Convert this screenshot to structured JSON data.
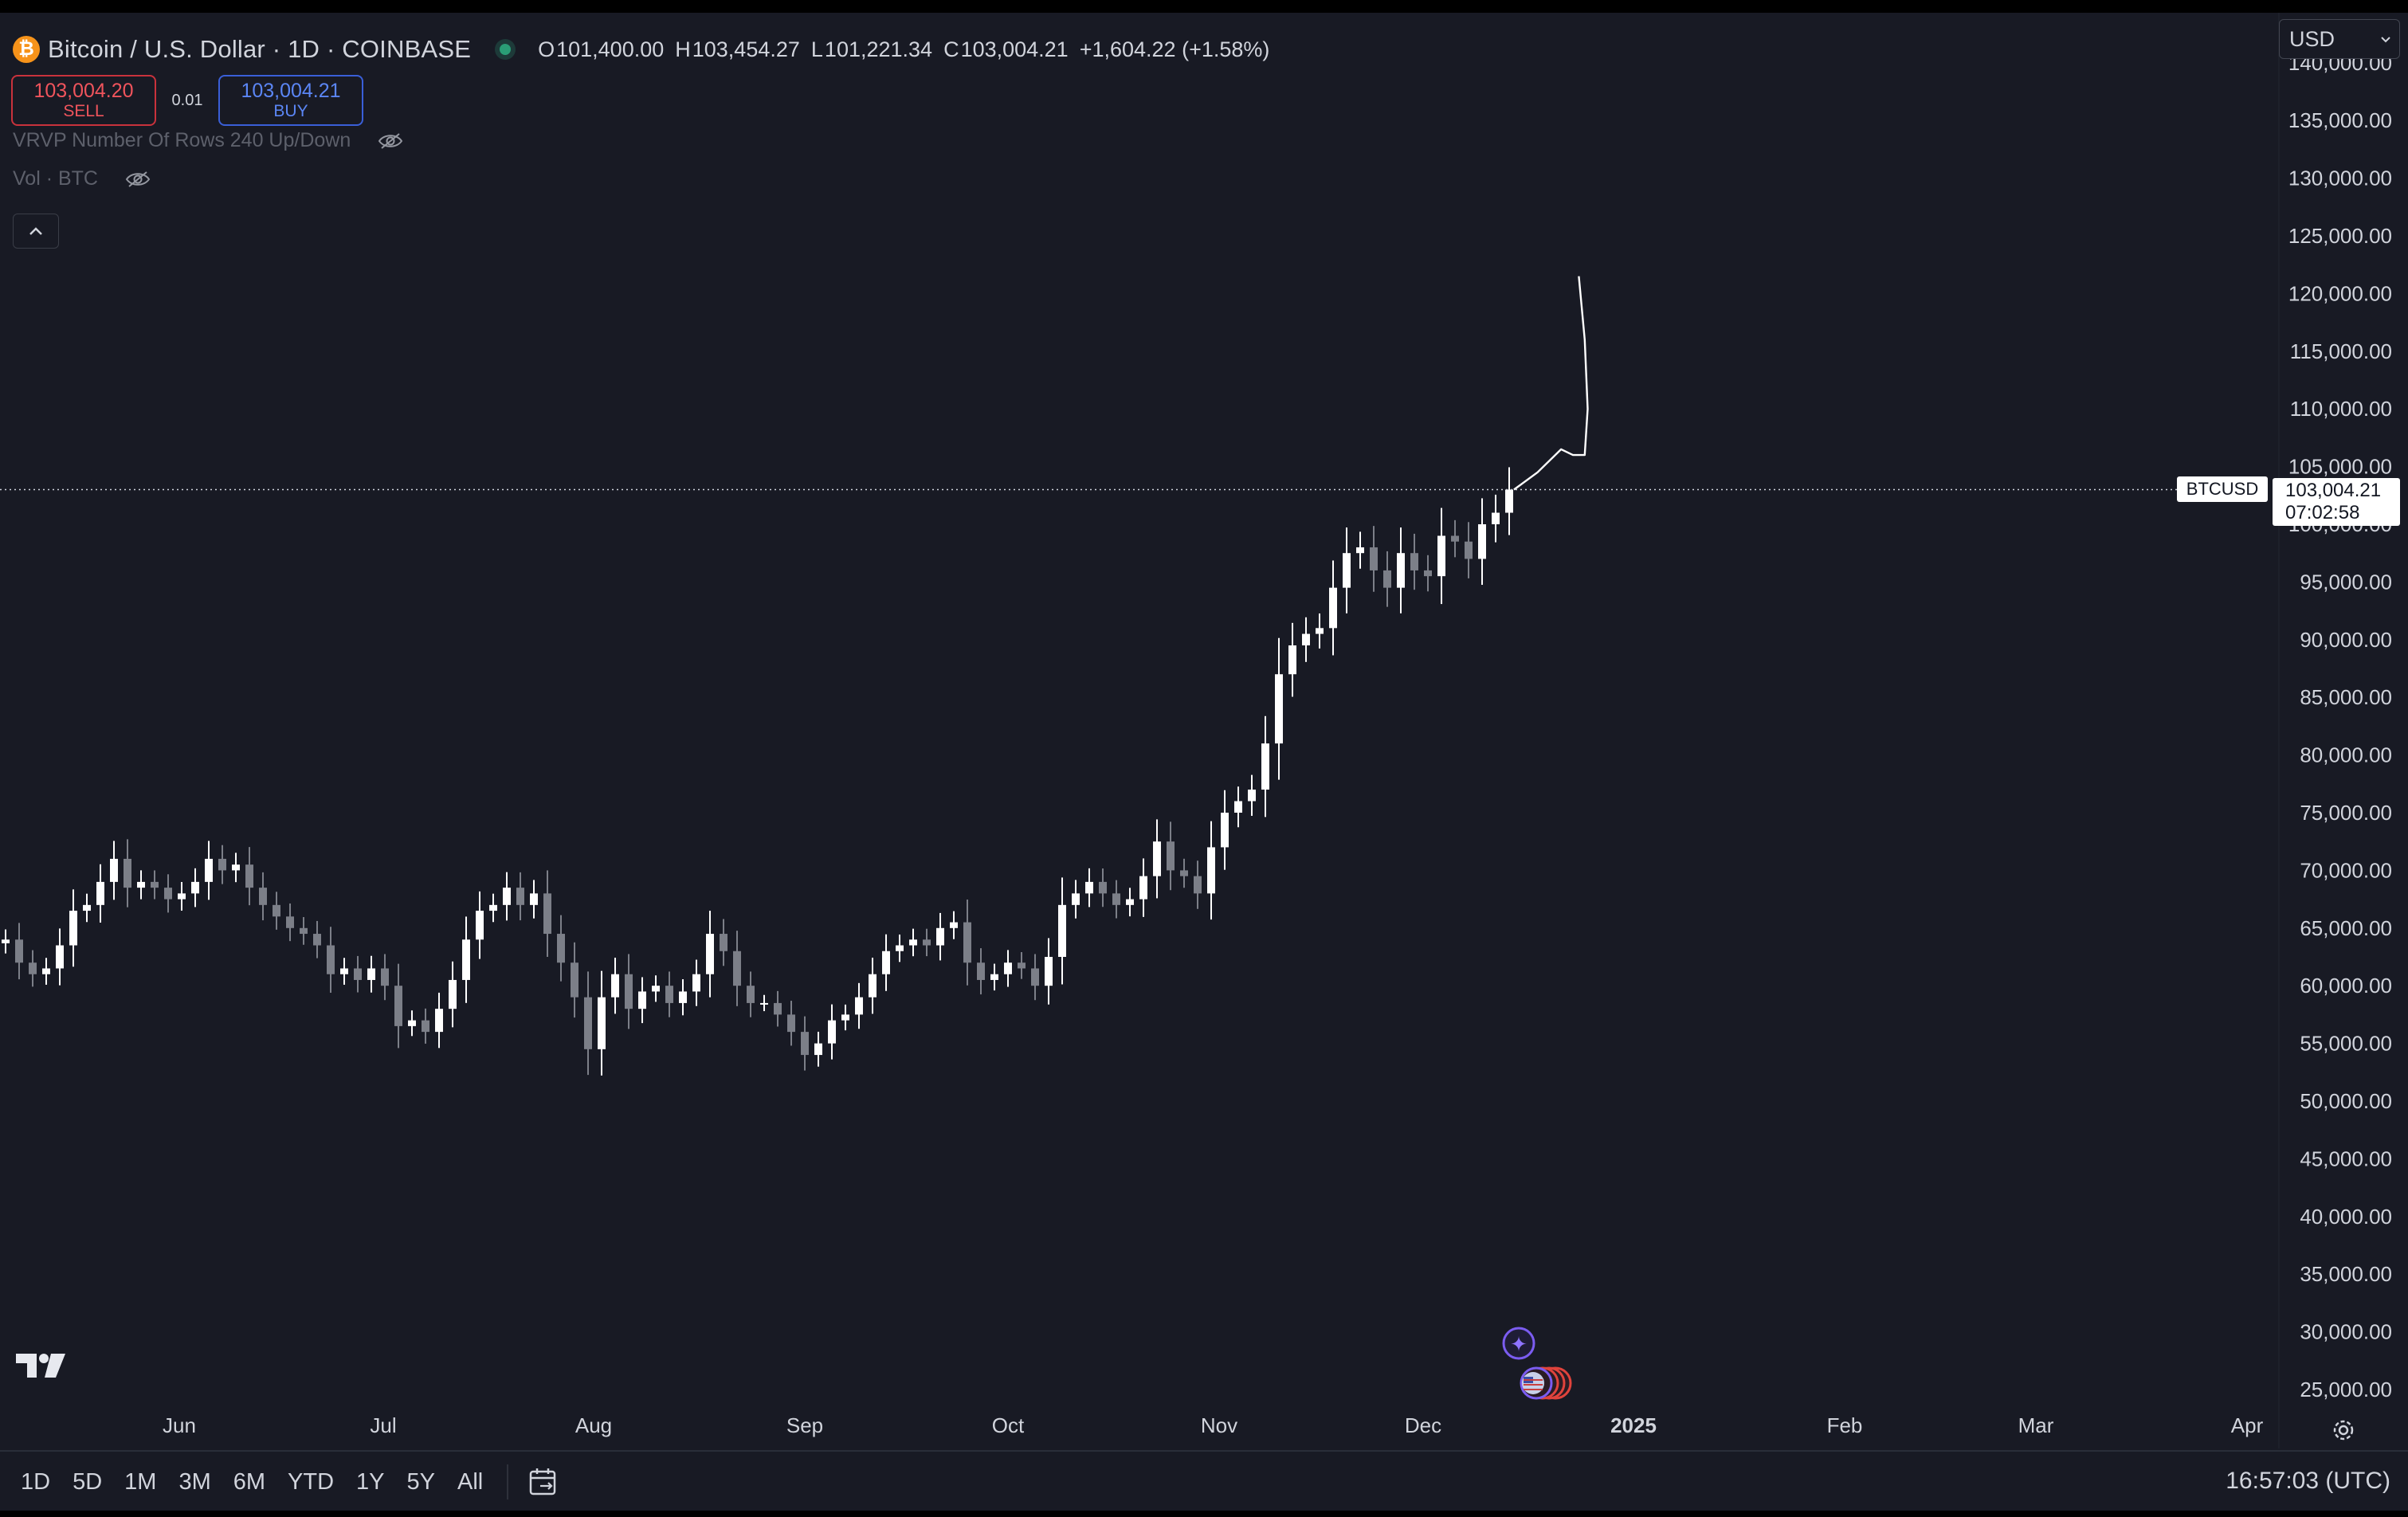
{
  "header": {
    "symbol_title": "Bitcoin / U.S. Dollar · 1D · COINBASE",
    "logo_glyph": "₿",
    "ohlc": {
      "o_key": "O",
      "o": "101,400.00",
      "h_key": "H",
      "h": "103,454.27",
      "l_key": "L",
      "l": "101,221.34",
      "c_key": "C",
      "c": "103,004.21",
      "change": "+1,604.22 (+1.58%)"
    }
  },
  "trade": {
    "sell_price": "103,004.20",
    "sell_label": "SELL",
    "spread": "0.01",
    "buy_price": "103,004.21",
    "buy_label": "BUY"
  },
  "indicators": [
    "VRVP Number Of Rows 240 Up/Down",
    "Vol · BTC"
  ],
  "currency_select": "USD",
  "last_price": {
    "symbol": "BTCUSD",
    "price": "103,004.21",
    "countdown": "07:02:58"
  },
  "range_buttons": [
    "1D",
    "5D",
    "1M",
    "3M",
    "6M",
    "YTD",
    "1Y",
    "5Y",
    "All"
  ],
  "clock": "16:57:03 (UTC)",
  "colors": {
    "background": "#181a24",
    "candle_up": "#ffffff",
    "candle_down": "#7c7f88",
    "sell": "#f0545c",
    "buy": "#5b86f5"
  },
  "chart_data": {
    "type": "candlestick",
    "title": "Bitcoin / U.S. Dollar · 1D · COINBASE",
    "x_tick_labels": [
      "Jun",
      "Jul",
      "Aug",
      "Sep",
      "Oct",
      "Nov",
      "Dec",
      "2025",
      "Feb",
      "Mar",
      "Apr"
    ],
    "y_tick_labels": [
      "25,000.00",
      "30,000.00",
      "35,000.00",
      "40,000.00",
      "45,000.00",
      "50,000.00",
      "55,000.00",
      "60,000.00",
      "65,000.00",
      "70,000.00",
      "75,000.00",
      "80,000.00",
      "85,000.00",
      "90,000.00",
      "95,000.00",
      "100,000.00",
      "105,000.00",
      "110,000.00",
      "115,000.00",
      "120,000.00",
      "125,000.00",
      "130,000.00",
      "135,000.00",
      "140,000.00"
    ],
    "ylim": [
      25000,
      140000
    ],
    "closes_approx": [
      64000,
      62000,
      61000,
      61500,
      63500,
      66500,
      67000,
      69000,
      71000,
      68500,
      69000,
      68500,
      67500,
      68000,
      69000,
      71000,
      70000,
      70500,
      68500,
      67000,
      66000,
      65000,
      64500,
      63500,
      61000,
      61500,
      60500,
      61500,
      60000,
      56500,
      57000,
      56000,
      58000,
      60500,
      64000,
      66500,
      67000,
      68500,
      67000,
      68000,
      64500,
      62000,
      59000,
      54500,
      59000,
      61000,
      58000,
      59500,
      60000,
      58500,
      59500,
      61000,
      64500,
      63000,
      60000,
      58500,
      58500,
      57500,
      56000,
      54000,
      55000,
      57000,
      57500,
      59000,
      61000,
      63000,
      63500,
      64000,
      63500,
      65000,
      65500,
      62000,
      60500,
      61000,
      62000,
      61500,
      60000,
      62500,
      67000,
      68000,
      69000,
      68000,
      67000,
      67500,
      69500,
      72500,
      70000,
      69500,
      68000,
      72000,
      75000,
      76000,
      77000,
      81000,
      87000,
      89500,
      90500,
      91000,
      94500,
      97500,
      98000,
      96000,
      94500,
      97500,
      96000,
      95500,
      99000,
      98500,
      97000,
      100000,
      101000,
      103004
    ],
    "forecast_line_approx": [
      [
        0,
        103004
      ],
      [
        4,
        104500
      ],
      [
        8,
        106500
      ],
      [
        10,
        106000
      ],
      [
        12,
        106000
      ],
      [
        12.5,
        110000
      ],
      [
        12,
        116000
      ],
      [
        11,
        121500
      ]
    ]
  }
}
